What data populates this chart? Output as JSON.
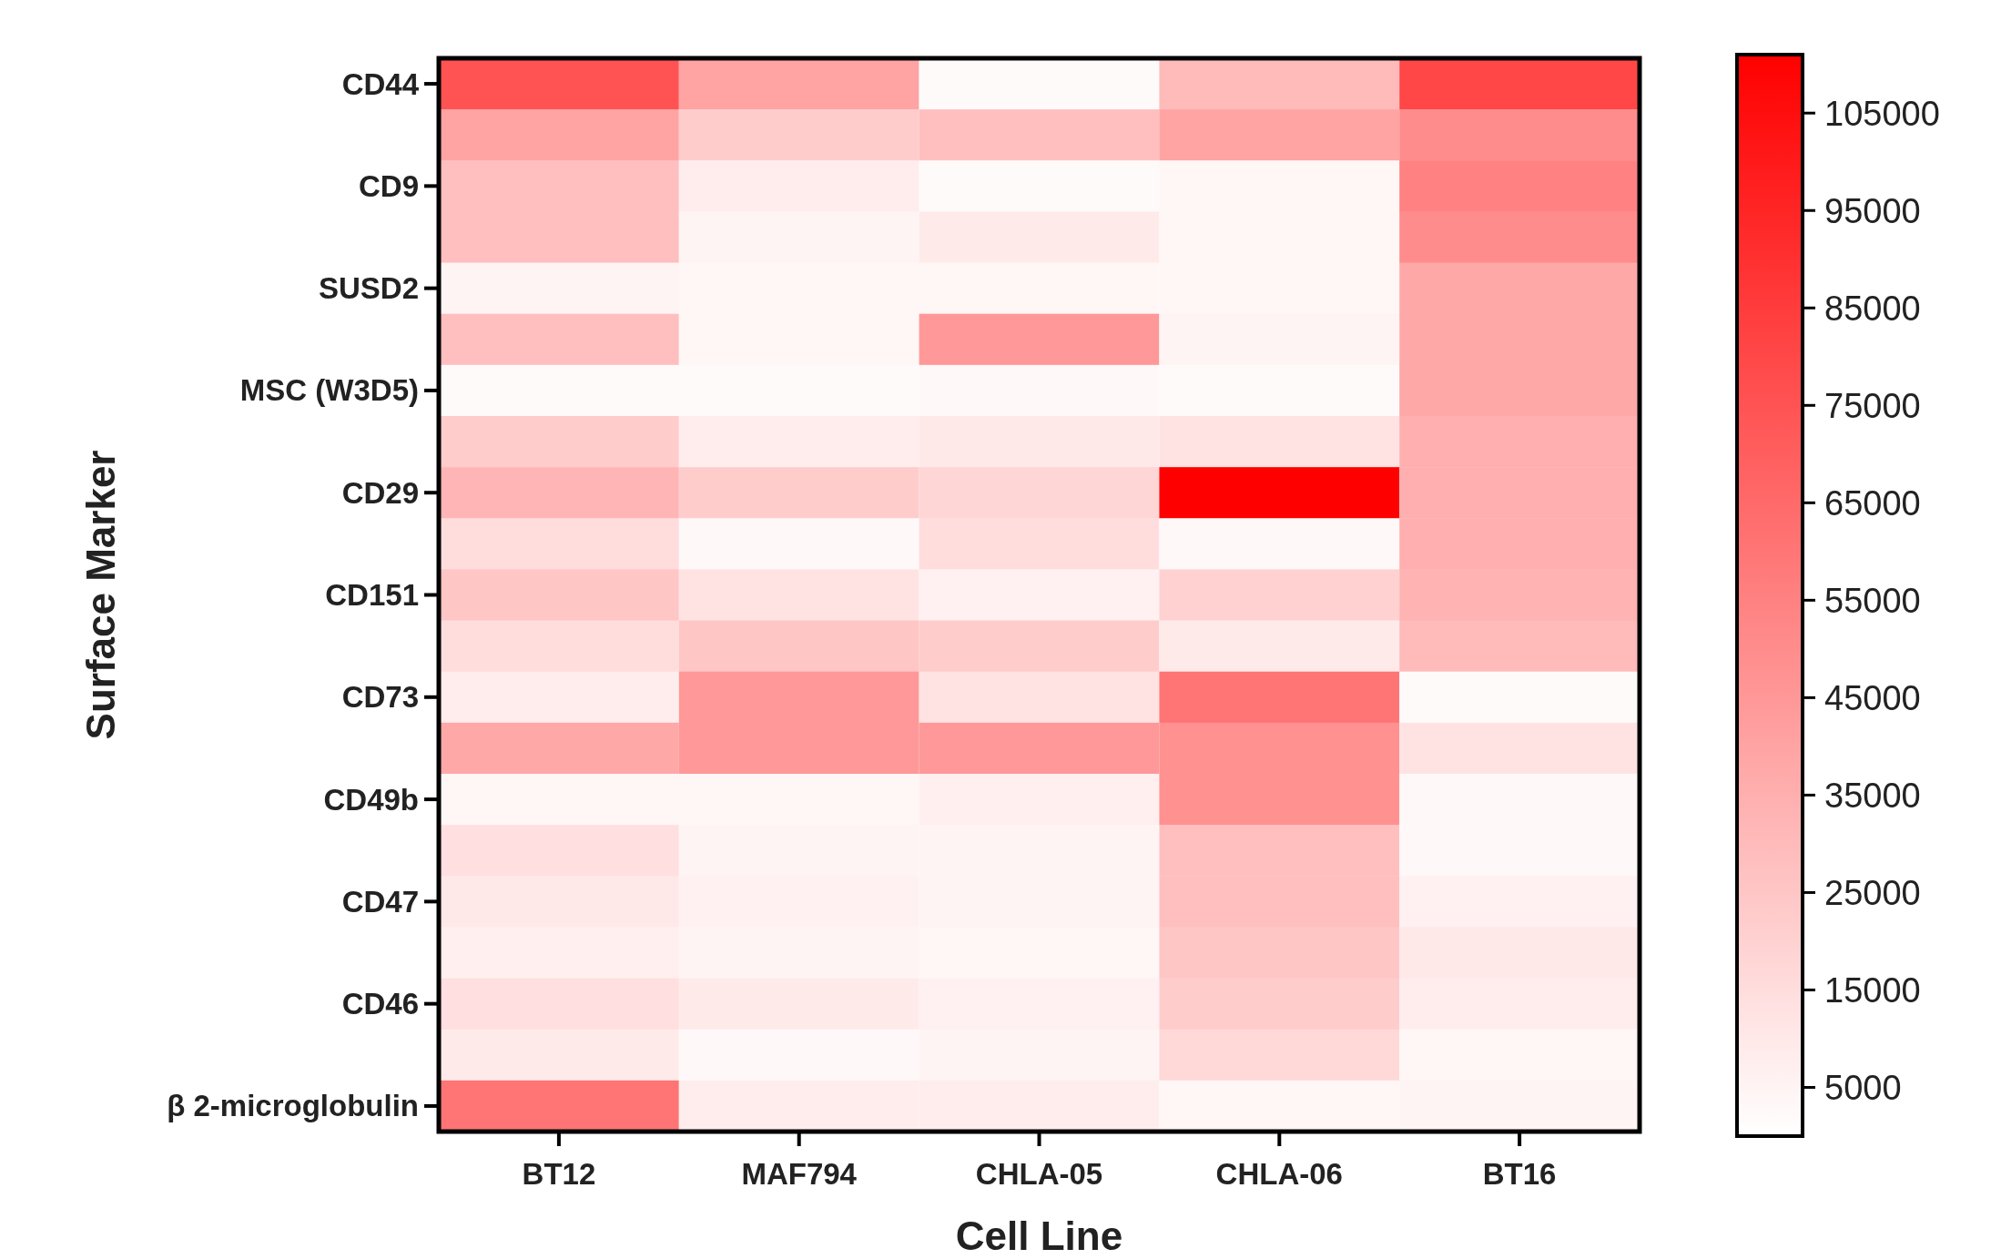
{
  "chart_data": {
    "type": "heatmap",
    "xlabel": "Cell Line",
    "ylabel": "Surface Marker",
    "clim": [
      0,
      111000
    ],
    "cticks": [
      5000,
      15000,
      25000,
      35000,
      45000,
      55000,
      65000,
      75000,
      85000,
      95000,
      105000
    ],
    "categories": [
      "BT12",
      "MAF794",
      "CHLA-05",
      "CHLA-06",
      "BT16"
    ],
    "y_categories": [
      "CD44",
      null,
      "CD9",
      null,
      "SUSD2",
      null,
      "MSC (W3D5)",
      null,
      "CD29",
      null,
      "CD151",
      null,
      "CD73",
      null,
      "CD49b",
      null,
      "CD47",
      null,
      "CD46",
      null,
      "β 2-microglobulin"
    ],
    "cells": [
      [
        75000,
        40000,
        2000,
        30000,
        80000
      ],
      [
        40000,
        22000,
        28000,
        40000,
        50000
      ],
      [
        28000,
        8000,
        2000,
        4000,
        55000
      ],
      [
        28000,
        5000,
        9000,
        4000,
        50000
      ],
      [
        5000,
        4000,
        4000,
        4000,
        38000
      ],
      [
        28000,
        4000,
        45000,
        5000,
        38000
      ],
      [
        2000,
        2000,
        3000,
        2000,
        38000
      ],
      [
        22000,
        8000,
        10000,
        12000,
        35000
      ],
      [
        32000,
        22000,
        18000,
        111000,
        35000
      ],
      [
        15000,
        3000,
        15000,
        3000,
        35000
      ],
      [
        25000,
        12000,
        6000,
        20000,
        33000
      ],
      [
        15000,
        25000,
        22000,
        9000,
        30000
      ],
      [
        8000,
        45000,
        12000,
        60000,
        2000
      ],
      [
        38000,
        45000,
        45000,
        48000,
        12000
      ],
      [
        4000,
        4000,
        7000,
        48000,
        3000
      ],
      [
        14000,
        5000,
        5000,
        28000,
        3000
      ],
      [
        10000,
        6000,
        5000,
        28000,
        6000
      ],
      [
        7000,
        5000,
        4000,
        25000,
        10000
      ],
      [
        14000,
        9000,
        6000,
        22000,
        8000
      ],
      [
        9000,
        3000,
        5000,
        17000,
        4000
      ],
      [
        60000,
        8000,
        8000,
        4000,
        5000
      ]
    ]
  }
}
